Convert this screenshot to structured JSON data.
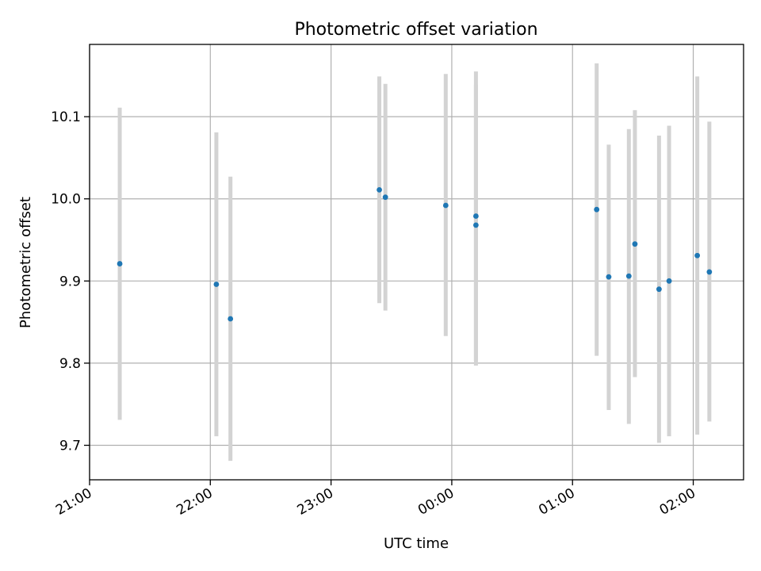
{
  "chart_data": {
    "type": "scatter",
    "title": "Photometric offset variation",
    "xlabel": "UTC time",
    "ylabel": "Photometric offset",
    "x_axis": {
      "kind": "time",
      "range": [
        "21:00",
        "02:25"
      ],
      "ticks": [
        "21:00",
        "22:00",
        "23:00",
        "00:00",
        "01:00",
        "02:00"
      ]
    },
    "y_axis": {
      "range": [
        9.658,
        10.188
      ],
      "ticks": [
        9.7,
        9.8,
        9.9,
        10.0,
        10.1
      ]
    },
    "grid": true,
    "colors": {
      "point": "#1f77b4",
      "error_bar": "#d3d3d3",
      "grid": "#b0b0b0"
    },
    "points": [
      {
        "time": "21:15",
        "y": 9.921,
        "ylow": 9.731,
        "yhigh": 10.111
      },
      {
        "time": "22:03",
        "y": 9.896,
        "ylow": 9.711,
        "yhigh": 10.081
      },
      {
        "time": "22:10",
        "y": 9.854,
        "ylow": 9.681,
        "yhigh": 10.027
      },
      {
        "time": "23:24",
        "y": 10.011,
        "ylow": 9.873,
        "yhigh": 10.149
      },
      {
        "time": "23:27",
        "y": 10.002,
        "ylow": 9.864,
        "yhigh": 10.14
      },
      {
        "time": "23:57",
        "y": 9.992,
        "ylow": 9.833,
        "yhigh": 10.152
      },
      {
        "time": "00:12",
        "y": 9.979,
        "ylow": 9.803,
        "yhigh": 10.155
      },
      {
        "time": "00:12",
        "y": 9.968,
        "ylow": 9.797,
        "yhigh": 10.139
      },
      {
        "time": "01:12",
        "y": 9.987,
        "ylow": 9.809,
        "yhigh": 10.165
      },
      {
        "time": "01:18",
        "y": 9.905,
        "ylow": 9.743,
        "yhigh": 10.066
      },
      {
        "time": "01:28",
        "y": 9.906,
        "ylow": 9.726,
        "yhigh": 10.085
      },
      {
        "time": "01:31",
        "y": 9.945,
        "ylow": 9.783,
        "yhigh": 10.108
      },
      {
        "time": "01:43",
        "y": 9.89,
        "ylow": 9.703,
        "yhigh": 10.077
      },
      {
        "time": "01:48",
        "y": 9.9,
        "ylow": 9.711,
        "yhigh": 10.089
      },
      {
        "time": "02:02",
        "y": 9.931,
        "ylow": 9.713,
        "yhigh": 10.149
      },
      {
        "time": "02:08",
        "y": 9.911,
        "ylow": 9.729,
        "yhigh": 10.094
      }
    ]
  }
}
